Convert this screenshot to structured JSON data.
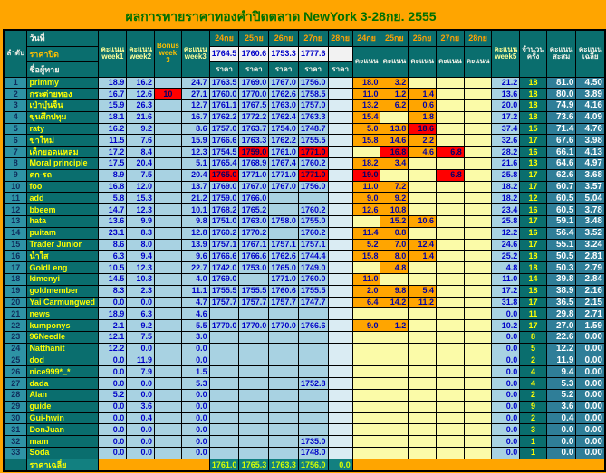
{
  "title": "ผลการทายราคาทองคำปิดตลาด NewYork 3-28กย. 2555",
  "colors": {
    "page_bg": "#FFA500",
    "title_green": "#007000",
    "header_teal": "#0A6E6E",
    "rank_teal": "#2E93A5",
    "stat_teal": "#2F7E98",
    "light_blue": "#A8D2E2",
    "pale_blue": "#DAECF3",
    "score_filled_orange": "#FFA500",
    "score_empty_yellow": "#FBFBA8",
    "highlight_red": "#FF0000",
    "value_blue": "#0000C8",
    "name_yellow": "#FFFF00"
  },
  "header": {
    "rank": "ลำดับ",
    "date": "วันที่",
    "close_price": "ราคาปิด",
    "guesser": "ชื่อผู้ทาย",
    "week1": "คะแนน week1",
    "week2": "คะแนน week2",
    "bonus": "Bonus week 3",
    "week3": "คะแนน week3",
    "price_dates": [
      "24กย",
      "25กย",
      "26กย",
      "27กย",
      "28กย"
    ],
    "closing_prices": [
      "1764.5",
      "1760.6",
      "1753.3",
      "1777.6",
      ""
    ],
    "price_label": "ราคา",
    "score_dates": [
      "24กย",
      "25กย",
      "26กย",
      "27กย",
      "28กย"
    ],
    "score_label": "คะแนน",
    "week5": "คะแนน week5",
    "count": "จำนวนครั้ง",
    "cumulative": "คะแนนสะสม",
    "average": "คะแนนเฉลี่ย"
  },
  "rows": [
    {
      "rank": "1",
      "name": "primmy",
      "w1": "18.9",
      "w2": "16.2",
      "bonus": "",
      "w3": "24.7",
      "prices": [
        "1763.5",
        "1769.0",
        "1767.0",
        "1756.0",
        ""
      ],
      "prices_red": [],
      "scores": [
        "18.0",
        "3.2",
        "",
        "",
        ""
      ],
      "scores_red": [],
      "w5": "21.2",
      "count": "18",
      "cum": "81.0",
      "avg": "4.50"
    },
    {
      "rank": "2",
      "name": "กระต่ายทอง",
      "w1": "16.7",
      "w2": "12.6",
      "bonus": "10",
      "w3": "27.1",
      "prices": [
        "1760.0",
        "1770.0",
        "1762.6",
        "1758.5",
        ""
      ],
      "prices_red": [],
      "scores": [
        "11.0",
        "1.2",
        "1.4",
        "",
        ""
      ],
      "scores_red": [],
      "w5": "13.6",
      "count": "18",
      "cum": "80.0",
      "avg": "3.89"
    },
    {
      "rank": "3",
      "name": "เป่าบุ๋นจิ้น",
      "w1": "15.9",
      "w2": "26.3",
      "bonus": "",
      "w3": "12.7",
      "prices": [
        "1761.1",
        "1767.5",
        "1763.0",
        "1757.0",
        ""
      ],
      "prices_red": [],
      "scores": [
        "13.2",
        "6.2",
        "0.6",
        "",
        ""
      ],
      "scores_red": [],
      "w5": "20.0",
      "count": "18",
      "cum": "74.9",
      "avg": "4.16"
    },
    {
      "rank": "4",
      "name": "ขุนศึกปทุม",
      "w1": "18.1",
      "w2": "21.6",
      "bonus": "",
      "w3": "16.7",
      "prices": [
        "1762.2",
        "1772.2",
        "1762.4",
        "1763.3",
        ""
      ],
      "prices_red": [],
      "scores": [
        "15.4",
        "",
        "1.8",
        "",
        ""
      ],
      "scores_red": [],
      "w5": "17.2",
      "count": "18",
      "cum": "73.6",
      "avg": "4.09"
    },
    {
      "rank": "5",
      "name": "raty",
      "w1": "16.2",
      "w2": "9.2",
      "bonus": "",
      "w3": "8.6",
      "prices": [
        "1757.0",
        "1763.7",
        "1754.0",
        "1748.7",
        ""
      ],
      "prices_red": [],
      "scores": [
        "5.0",
        "13.8",
        "18.6",
        "",
        ""
      ],
      "scores_red": [
        2
      ],
      "w5": "37.4",
      "count": "15",
      "cum": "71.4",
      "avg": "4.76"
    },
    {
      "rank": "6",
      "name": "ขาใหม่",
      "w1": "11.5",
      "w2": "7.6",
      "bonus": "",
      "w3": "15.9",
      "prices": [
        "1766.6",
        "1763.3",
        "1762.2",
        "1755.5",
        ""
      ],
      "prices_red": [],
      "scores": [
        "15.8",
        "14.6",
        "2.2",
        "",
        ""
      ],
      "scores_red": [],
      "w5": "32.6",
      "count": "17",
      "cum": "67.6",
      "avg": "3.98"
    },
    {
      "rank": "7",
      "name": "เด็กยอดแหลม",
      "w1": "17.2",
      "w2": "8.4",
      "bonus": "",
      "w3": "12.3",
      "prices": [
        "1754.5",
        "1759.0",
        "1761.0",
        "1771.0",
        ""
      ],
      "prices_red": [
        1,
        3
      ],
      "scores": [
        "",
        "16.8",
        "4.6",
        "6.8",
        ""
      ],
      "scores_red": [
        1,
        3
      ],
      "w5": "28.2",
      "count": "16",
      "cum": "66.1",
      "avg": "4.13"
    },
    {
      "rank": "8",
      "name": "Moral principle",
      "w1": "17.5",
      "w2": "20.4",
      "bonus": "",
      "w3": "5.1",
      "prices": [
        "1765.4",
        "1768.9",
        "1767.4",
        "1760.2",
        ""
      ],
      "prices_red": [],
      "scores": [
        "18.2",
        "3.4",
        "",
        "",
        ""
      ],
      "scores_red": [],
      "w5": "21.6",
      "count": "13",
      "cum": "64.6",
      "avg": "4.97"
    },
    {
      "rank": "9",
      "name": "ตก-รถ",
      "w1": "8.9",
      "w2": "7.5",
      "bonus": "",
      "w3": "20.4",
      "prices": [
        "1765.0",
        "1771.0",
        "1771.0",
        "1771.0",
        ""
      ],
      "prices_red": [
        0,
        3
      ],
      "scores": [
        "19.0",
        "",
        "",
        "6.8",
        ""
      ],
      "scores_red": [
        0,
        3
      ],
      "w5": "25.8",
      "count": "17",
      "cum": "62.6",
      "avg": "3.68"
    },
    {
      "rank": "10",
      "name": "foo",
      "w1": "16.8",
      "w2": "12.0",
      "bonus": "",
      "w3": "13.7",
      "prices": [
        "1769.0",
        "1767.0",
        "1767.0",
        "1756.0",
        ""
      ],
      "prices_red": [],
      "scores": [
        "11.0",
        "7.2",
        "",
        "",
        ""
      ],
      "scores_red": [],
      "w5": "18.2",
      "count": "17",
      "cum": "60.7",
      "avg": "3.57"
    },
    {
      "rank": "11",
      "name": "add",
      "w1": "5.8",
      "w2": "15.3",
      "bonus": "",
      "w3": "21.2",
      "prices": [
        "1759.0",
        "1766.0",
        "",
        "",
        ""
      ],
      "prices_red": [],
      "scores": [
        "9.0",
        "9.2",
        "",
        "",
        ""
      ],
      "scores_red": [],
      "w5": "18.2",
      "count": "12",
      "cum": "60.5",
      "avg": "5.04"
    },
    {
      "rank": "12",
      "name": "bbeem",
      "w1": "14.7",
      "w2": "12.3",
      "bonus": "",
      "w3": "10.1",
      "prices": [
        "1768.2",
        "1765.2",
        "",
        "1760.2",
        ""
      ],
      "prices_red": [],
      "scores": [
        "12.6",
        "10.8",
        "",
        "",
        ""
      ],
      "scores_red": [],
      "w5": "23.4",
      "count": "16",
      "cum": "60.5",
      "avg": "3.78"
    },
    {
      "rank": "13",
      "name": "hata",
      "w1": "13.6",
      "w2": "9.9",
      "bonus": "",
      "w3": "9.8",
      "prices": [
        "1751.0",
        "1763.0",
        "1758.0",
        "1755.0",
        ""
      ],
      "prices_red": [],
      "scores": [
        "",
        "15.2",
        "10.6",
        "",
        ""
      ],
      "scores_red": [],
      "w5": "25.8",
      "count": "17",
      "cum": "59.1",
      "avg": "3.48"
    },
    {
      "rank": "14",
      "name": "puitam",
      "w1": "23.1",
      "w2": "8.3",
      "bonus": "",
      "w3": "12.8",
      "prices": [
        "1760.2",
        "1770.2",
        "",
        "1760.2",
        ""
      ],
      "prices_red": [],
      "scores": [
        "11.4",
        "0.8",
        "",
        "",
        ""
      ],
      "scores_red": [],
      "w5": "12.2",
      "count": "16",
      "cum": "56.4",
      "avg": "3.52"
    },
    {
      "rank": "15",
      "name": "Trader Junior",
      "w1": "8.6",
      "w2": "8.0",
      "bonus": "",
      "w3": "13.9",
      "prices": [
        "1757.1",
        "1767.1",
        "1757.1",
        "1757.1",
        ""
      ],
      "prices_red": [],
      "scores": [
        "5.2",
        "7.0",
        "12.4",
        "",
        ""
      ],
      "scores_red": [],
      "w5": "24.6",
      "count": "17",
      "cum": "55.1",
      "avg": "3.24"
    },
    {
      "rank": "16",
      "name": "น้ำใส",
      "w1": "6.3",
      "w2": "9.4",
      "bonus": "",
      "w3": "9.6",
      "prices": [
        "1766.6",
        "1766.6",
        "1762.6",
        "1744.4",
        ""
      ],
      "prices_red": [],
      "scores": [
        "15.8",
        "8.0",
        "1.4",
        "",
        ""
      ],
      "scores_red": [],
      "w5": "25.2",
      "count": "18",
      "cum": "50.5",
      "avg": "2.81"
    },
    {
      "rank": "17",
      "name": "GoldLeng",
      "w1": "10.5",
      "w2": "12.3",
      "bonus": "",
      "w3": "22.7",
      "prices": [
        "1742.0",
        "1753.0",
        "1765.0",
        "1749.0",
        ""
      ],
      "prices_red": [],
      "scores": [
        "",
        "4.8",
        "",
        "",
        ""
      ],
      "scores_red": [],
      "w5": "4.8",
      "count": "18",
      "cum": "50.3",
      "avg": "2.79"
    },
    {
      "rank": "18",
      "name": "kimenyi",
      "w1": "14.5",
      "w2": "10.3",
      "bonus": "",
      "w3": "4.0",
      "prices": [
        "1769.0",
        "",
        "1771.0",
        "1760.0",
        ""
      ],
      "prices_red": [],
      "scores": [
        "11.0",
        "",
        "",
        "",
        ""
      ],
      "scores_red": [],
      "w5": "11.0",
      "count": "14",
      "cum": "39.8",
      "avg": "2.84"
    },
    {
      "rank": "19",
      "name": "goldmember",
      "w1": "8.3",
      "w2": "2.3",
      "bonus": "",
      "w3": "11.1",
      "prices": [
        "1755.5",
        "1755.5",
        "1760.6",
        "1755.5",
        ""
      ],
      "prices_red": [],
      "scores": [
        "2.0",
        "9.8",
        "5.4",
        "",
        ""
      ],
      "scores_red": [],
      "w5": "17.2",
      "count": "18",
      "cum": "38.9",
      "avg": "2.16"
    },
    {
      "rank": "20",
      "name": "Yai Carmungwed",
      "w1": "0.0",
      "w2": "0.0",
      "bonus": "",
      "w3": "4.7",
      "prices": [
        "1757.7",
        "1757.7",
        "1757.7",
        "1747.7",
        ""
      ],
      "prices_red": [],
      "scores": [
        "6.4",
        "14.2",
        "11.2",
        "",
        ""
      ],
      "scores_red": [],
      "w5": "31.8",
      "count": "17",
      "cum": "36.5",
      "avg": "2.15"
    },
    {
      "rank": "21",
      "name": "news",
      "w1": "18.9",
      "w2": "6.3",
      "bonus": "",
      "w3": "4.6",
      "prices": [
        "",
        "",
        "",
        "",
        ""
      ],
      "prices_red": [],
      "scores": [
        "",
        "",
        "",
        "",
        ""
      ],
      "scores_red": [],
      "w5": "0.0",
      "count": "11",
      "cum": "29.8",
      "avg": "2.71"
    },
    {
      "rank": "22",
      "name": "kumponys",
      "w1": "2.1",
      "w2": "9.2",
      "bonus": "",
      "w3": "5.5",
      "prices": [
        "1770.0",
        "1770.0",
        "1770.0",
        "1766.6",
        ""
      ],
      "prices_red": [],
      "scores": [
        "9.0",
        "1.2",
        "",
        "",
        ""
      ],
      "scores_red": [],
      "w5": "10.2",
      "count": "17",
      "cum": "27.0",
      "avg": "1.59"
    },
    {
      "rank": "23",
      "name": "96Needle",
      "w1": "12.1",
      "w2": "7.5",
      "bonus": "",
      "w3": "3.0",
      "prices": [
        "",
        "",
        "",
        "",
        ""
      ],
      "prices_red": [],
      "scores": [
        "",
        "",
        "",
        "",
        ""
      ],
      "scores_red": [],
      "w5": "0.0",
      "count": "8",
      "cum": "22.6",
      "avg": "0.00"
    },
    {
      "rank": "24",
      "name": "Natthanit",
      "w1": "12.2",
      "w2": "0.0",
      "bonus": "",
      "w3": "0.0",
      "prices": [
        "",
        "",
        "",
        "",
        ""
      ],
      "prices_red": [],
      "scores": [
        "",
        "",
        "",
        "",
        ""
      ],
      "scores_red": [],
      "w5": "0.0",
      "count": "5",
      "cum": "12.2",
      "avg": "0.00"
    },
    {
      "rank": "25",
      "name": "dod",
      "w1": "0.0",
      "w2": "11.9",
      "bonus": "",
      "w3": "0.0",
      "prices": [
        "",
        "",
        "",
        "",
        ""
      ],
      "prices_red": [],
      "scores": [
        "",
        "",
        "",
        "",
        ""
      ],
      "scores_red": [],
      "w5": "0.0",
      "count": "2",
      "cum": "11.9",
      "avg": "0.00"
    },
    {
      "rank": "26",
      "name": "nice999*_*",
      "w1": "0.0",
      "w2": "7.9",
      "bonus": "",
      "w3": "1.5",
      "prices": [
        "",
        "",
        "",
        "",
        ""
      ],
      "prices_red": [],
      "scores": [
        "",
        "",
        "",
        "",
        ""
      ],
      "scores_red": [],
      "w5": "0.0",
      "count": "4",
      "cum": "9.4",
      "avg": "0.00"
    },
    {
      "rank": "27",
      "name": "dada",
      "w1": "0.0",
      "w2": "0.0",
      "bonus": "",
      "w3": "5.3",
      "prices": [
        "",
        "",
        "",
        "1752.8",
        ""
      ],
      "prices_red": [],
      "scores": [
        "",
        "",
        "",
        "",
        ""
      ],
      "scores_red": [],
      "w5": "0.0",
      "count": "4",
      "cum": "5.3",
      "avg": "0.00"
    },
    {
      "rank": "28",
      "name": "Alan",
      "w1": "5.2",
      "w2": "0.0",
      "bonus": "",
      "w3": "0.0",
      "prices": [
        "",
        "",
        "",
        "",
        ""
      ],
      "prices_red": [],
      "scores": [
        "",
        "",
        "",
        "",
        ""
      ],
      "scores_red": [],
      "w5": "0.0",
      "count": "2",
      "cum": "5.2",
      "avg": "0.00"
    },
    {
      "rank": "29",
      "name": "guide",
      "w1": "0.0",
      "w2": "3.6",
      "bonus": "",
      "w3": "0.0",
      "prices": [
        "",
        "",
        "",
        "",
        ""
      ],
      "prices_red": [],
      "scores": [
        "",
        "",
        "",
        "",
        ""
      ],
      "scores_red": [],
      "w5": "0.0",
      "count": "9",
      "cum": "3.6",
      "avg": "0.00"
    },
    {
      "rank": "30",
      "name": "Gui-hwin",
      "w1": "0.0",
      "w2": "0.4",
      "bonus": "",
      "w3": "0.0",
      "prices": [
        "",
        "",
        "",
        "",
        ""
      ],
      "prices_red": [],
      "scores": [
        "",
        "",
        "",
        "",
        ""
      ],
      "scores_red": [],
      "w5": "0.0",
      "count": "2",
      "cum": "0.4",
      "avg": "0.00"
    },
    {
      "rank": "31",
      "name": "DonJuan",
      "w1": "0.0",
      "w2": "0.0",
      "bonus": "",
      "w3": "0.0",
      "prices": [
        "",
        "",
        "",
        "",
        ""
      ],
      "prices_red": [],
      "scores": [
        "",
        "",
        "",
        "",
        ""
      ],
      "scores_red": [],
      "w5": "0.0",
      "count": "3",
      "cum": "0.0",
      "avg": "0.00"
    },
    {
      "rank": "32",
      "name": "mam",
      "w1": "0.0",
      "w2": "0.0",
      "bonus": "",
      "w3": "0.0",
      "prices": [
        "",
        "",
        "",
        "1735.0",
        ""
      ],
      "prices_red": [],
      "scores": [
        "",
        "",
        "",
        "",
        ""
      ],
      "scores_red": [],
      "w5": "0.0",
      "count": "1",
      "cum": "0.0",
      "avg": "0.00"
    },
    {
      "rank": "33",
      "name": "Soda",
      "w1": "0.0",
      "w2": "0.0",
      "bonus": "",
      "w3": "0.0",
      "prices": [
        "",
        "",
        "",
        "1748.0",
        ""
      ],
      "prices_red": [],
      "scores": [
        "",
        "",
        "",
        "",
        ""
      ],
      "scores_red": [],
      "w5": "0.0",
      "count": "1",
      "cum": "0.0",
      "avg": "0.00"
    }
  ],
  "footer": {
    "label": "ราคาเฉลี่ย",
    "avg_prices": [
      "1761.0",
      "1765.3",
      "1763.3",
      "1756.0",
      "0.0"
    ]
  }
}
